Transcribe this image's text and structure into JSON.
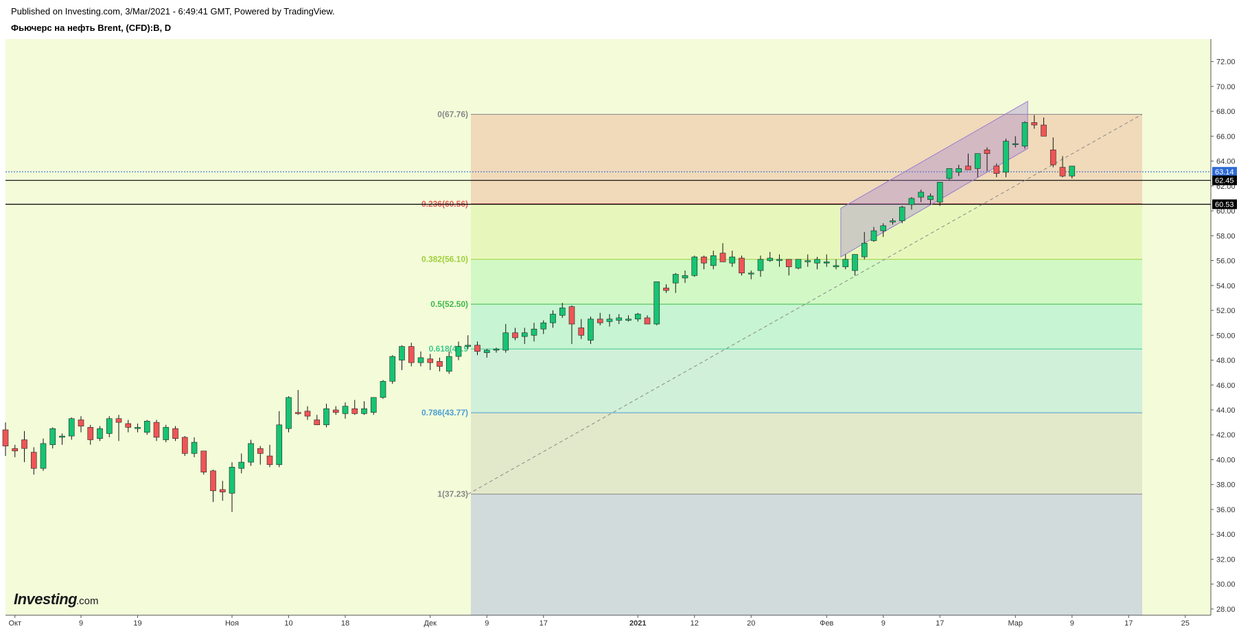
{
  "header": {
    "published": "Published on Investing.com, 3/Mar/2021 - 6:49:41 GMT, Powered by TradingView.",
    "symbol": "Фьючерс на нефть Brent, (CFD):B, D"
  },
  "logo": {
    "brand": "Investing",
    "suffix": ".com"
  },
  "colors": {
    "background": "#f3fbd9",
    "up": "#16c473",
    "down": "#ef5556",
    "wick": "#111111"
  },
  "chart_data": {
    "type": "candlestick",
    "ylim": [
      27.5,
      73.8
    ],
    "y_ticks": [
      "28.00",
      "30.00",
      "32.00",
      "34.00",
      "36.00",
      "38.00",
      "40.00",
      "42.00",
      "44.00",
      "46.00",
      "48.00",
      "50.00",
      "52.00",
      "54.00",
      "56.00",
      "58.00",
      "60.00",
      "62.00",
      "64.00",
      "66.00",
      "68.00",
      "70.00",
      "72.00"
    ],
    "x_ticks": [
      {
        "label": "Окт",
        "bar": 1,
        "bold": false
      },
      {
        "label": "9",
        "bar": 8,
        "bold": false
      },
      {
        "label": "19",
        "bar": 14,
        "bold": false
      },
      {
        "label": "Ноя",
        "bar": 24,
        "bold": false
      },
      {
        "label": "10",
        "bar": 30,
        "bold": false
      },
      {
        "label": "18",
        "bar": 36,
        "bold": false
      },
      {
        "label": "Дек",
        "bar": 45,
        "bold": false
      },
      {
        "label": "9",
        "bar": 51,
        "bold": false
      },
      {
        "label": "17",
        "bar": 57,
        "bold": false
      },
      {
        "label": "2021",
        "bar": 67,
        "bold": true
      },
      {
        "label": "12",
        "bar": 73,
        "bold": false
      },
      {
        "label": "20",
        "bar": 79,
        "bold": false
      },
      {
        "label": "Фев",
        "bar": 87,
        "bold": false
      },
      {
        "label": "9",
        "bar": 93,
        "bold": false
      },
      {
        "label": "17",
        "bar": 99,
        "bold": false
      },
      {
        "label": "Мар",
        "bar": 107,
        "bold": false
      },
      {
        "label": "9",
        "bar": 113,
        "bold": false
      },
      {
        "label": "17",
        "bar": 119,
        "bold": false
      },
      {
        "label": "25",
        "bar": 125,
        "bold": false
      }
    ],
    "candles": [
      [
        42.4,
        43.0,
        40.3,
        41.1
      ],
      [
        40.9,
        41.2,
        40.2,
        40.7
      ],
      [
        41.6,
        42.3,
        39.8,
        40.9
      ],
      [
        40.6,
        41.0,
        38.8,
        39.3
      ],
      [
        39.3,
        41.7,
        39.1,
        41.3
      ],
      [
        41.2,
        42.6,
        40.9,
        42.5
      ],
      [
        41.8,
        42.1,
        41.2,
        41.9
      ],
      [
        41.9,
        43.4,
        41.6,
        43.3
      ],
      [
        43.2,
        43.5,
        42.2,
        42.7
      ],
      [
        42.6,
        42.8,
        41.2,
        41.6
      ],
      [
        41.7,
        42.7,
        41.5,
        42.5
      ],
      [
        42.1,
        43.5,
        41.8,
        43.3
      ],
      [
        43.3,
        43.6,
        41.5,
        43.0
      ],
      [
        42.9,
        43.2,
        42.2,
        42.6
      ],
      [
        42.5,
        42.9,
        42.2,
        42.6
      ],
      [
        42.2,
        43.2,
        42.0,
        43.1
      ],
      [
        43.0,
        43.2,
        41.5,
        41.8
      ],
      [
        41.6,
        42.8,
        41.4,
        42.6
      ],
      [
        42.5,
        42.7,
        41.5,
        41.7
      ],
      [
        41.8,
        41.9,
        40.3,
        40.5
      ],
      [
        40.5,
        41.8,
        40.2,
        41.4
      ],
      [
        40.7,
        40.7,
        38.8,
        39.0
      ],
      [
        39.1,
        39.2,
        36.6,
        37.5
      ],
      [
        37.6,
        38.3,
        36.7,
        37.4
      ],
      [
        37.3,
        39.8,
        35.8,
        39.4
      ],
      [
        39.3,
        40.5,
        38.9,
        39.8
      ],
      [
        39.8,
        41.6,
        39.5,
        41.3
      ],
      [
        40.9,
        41.1,
        39.6,
        40.5
      ],
      [
        40.3,
        41.2,
        39.4,
        39.6
      ],
      [
        39.6,
        43.9,
        39.4,
        42.8
      ],
      [
        42.5,
        45.1,
        42.2,
        45.0
      ],
      [
        43.8,
        45.6,
        43.6,
        43.7
      ],
      [
        43.9,
        44.3,
        43.2,
        43.5
      ],
      [
        43.2,
        43.6,
        42.8,
        42.8
      ],
      [
        42.8,
        44.5,
        42.6,
        44.1
      ],
      [
        44.0,
        44.3,
        43.6,
        43.8
      ],
      [
        43.7,
        44.6,
        43.3,
        44.3
      ],
      [
        44.1,
        44.8,
        43.6,
        43.7
      ],
      [
        43.7,
        44.7,
        43.6,
        44.1
      ],
      [
        43.8,
        45.0,
        43.6,
        45.0
      ],
      [
        45.0,
        46.4,
        44.9,
        46.3
      ],
      [
        46.3,
        48.4,
        46.1,
        48.3
      ],
      [
        48.0,
        49.2,
        47.2,
        49.1
      ],
      [
        49.1,
        49.4,
        47.5,
        47.8
      ],
      [
        47.8,
        48.7,
        47.5,
        48.2
      ],
      [
        48.1,
        48.5,
        47.2,
        47.8
      ],
      [
        47.9,
        48.2,
        47.1,
        47.5
      ],
      [
        47.1,
        48.7,
        46.9,
        48.3
      ],
      [
        48.3,
        49.5,
        48.0,
        49.1
      ],
      [
        49.1,
        50.0,
        48.9,
        49.2
      ],
      [
        49.2,
        49.5,
        48.4,
        48.7
      ],
      [
        48.6,
        48.9,
        48.2,
        48.8
      ],
      [
        48.8,
        49.0,
        48.6,
        48.9
      ],
      [
        48.8,
        50.9,
        48.6,
        50.2
      ],
      [
        50.2,
        50.6,
        49.6,
        49.8
      ],
      [
        49.9,
        50.6,
        49.3,
        50.2
      ],
      [
        50.0,
        51.0,
        49.5,
        50.5
      ],
      [
        50.5,
        51.2,
        50.1,
        51.0
      ],
      [
        51.0,
        52.0,
        50.6,
        51.7
      ],
      [
        51.6,
        52.6,
        51.4,
        52.2
      ],
      [
        52.3,
        52.4,
        49.3,
        50.9
      ],
      [
        50.6,
        51.3,
        49.7,
        50.0
      ],
      [
        49.6,
        51.5,
        49.3,
        51.3
      ],
      [
        51.3,
        51.8,
        50.8,
        51.0
      ],
      [
        51.1,
        51.7,
        50.7,
        51.3
      ],
      [
        51.2,
        51.7,
        50.9,
        51.4
      ],
      [
        51.2,
        51.6,
        51.1,
        51.3
      ],
      [
        51.3,
        51.8,
        51.1,
        51.7
      ],
      [
        51.4,
        51.6,
        50.9,
        50.9
      ],
      [
        50.9,
        54.0,
        50.8,
        54.3
      ],
      [
        53.8,
        54.1,
        53.4,
        53.6
      ],
      [
        54.2,
        55.0,
        53.4,
        54.9
      ],
      [
        54.6,
        55.2,
        54.2,
        54.8
      ],
      [
        54.8,
        56.4,
        54.7,
        56.3
      ],
      [
        56.3,
        56.4,
        55.3,
        55.8
      ],
      [
        55.6,
        56.8,
        55.3,
        56.4
      ],
      [
        56.6,
        57.4,
        55.9,
        55.9
      ],
      [
        55.8,
        56.8,
        55.5,
        56.3
      ],
      [
        56.2,
        56.4,
        54.8,
        55.0
      ],
      [
        55.0,
        55.2,
        54.5,
        55.0
      ],
      [
        55.2,
        56.4,
        54.7,
        56.1
      ],
      [
        56.0,
        56.7,
        55.9,
        56.2
      ],
      [
        56.0,
        56.5,
        55.5,
        56.1
      ],
      [
        56.1,
        56.1,
        54.8,
        55.5
      ],
      [
        55.4,
        56.1,
        55.3,
        56.1
      ],
      [
        55.9,
        56.5,
        55.5,
        56.0
      ],
      [
        55.8,
        56.3,
        55.3,
        56.1
      ],
      [
        55.8,
        56.5,
        55.5,
        55.9
      ],
      [
        55.5,
        56.1,
        55.3,
        55.6
      ],
      [
        55.5,
        56.5,
        55.3,
        56.1
      ],
      [
        55.2,
        56.5,
        54.8,
        56.5
      ],
      [
        56.3,
        58.3,
        56.1,
        57.4
      ],
      [
        57.6,
        58.7,
        57.5,
        58.4
      ],
      [
        58.4,
        59.0,
        57.9,
        58.8
      ],
      [
        59.1,
        59.4,
        58.9,
        59.2
      ],
      [
        59.2,
        60.4,
        59.0,
        60.3
      ],
      [
        60.5,
        61.1,
        60.1,
        61.0
      ],
      [
        61.1,
        61.7,
        60.7,
        61.5
      ],
      [
        60.9,
        61.4,
        60.5,
        61.2
      ],
      [
        60.7,
        62.3,
        60.4,
        62.3
      ],
      [
        62.6,
        63.1,
        62.5,
        63.4
      ],
      [
        63.1,
        63.7,
        62.8,
        63.4
      ],
      [
        63.6,
        64.6,
        63.5,
        63.3
      ],
      [
        63.4,
        64.3,
        62.7,
        64.6
      ],
      [
        64.9,
        65.1,
        63.2,
        64.6
      ],
      [
        63.6,
        63.8,
        62.7,
        63.0
      ],
      [
        63.1,
        65.8,
        62.7,
        65.6
      ],
      [
        65.4,
        66.0,
        65.1,
        65.4
      ],
      [
        65.2,
        67.2,
        65.0,
        67.1
      ],
      [
        67.1,
        67.7,
        66.6,
        66.9
      ],
      [
        66.9,
        67.5,
        66.3,
        66.0
      ],
      [
        64.9,
        65.9,
        63.5,
        63.7
      ],
      [
        63.5,
        64.4,
        62.7,
        62.8
      ],
      [
        62.8,
        63.6,
        62.6,
        63.6
      ]
    ],
    "fib_levels": [
      {
        "ratio": "0",
        "price": 67.76,
        "label": "0(67.76)",
        "color": "#888888"
      },
      {
        "ratio": "0.236",
        "price": 60.56,
        "label": "0.236(60.56)",
        "color": "#e55a5a"
      },
      {
        "ratio": "0.382",
        "price": 56.1,
        "label": "0.382(56.10)",
        "color": "#9fcf3a"
      },
      {
        "ratio": "0.5",
        "price": 52.5,
        "label": "0.5(52.50)",
        "color": "#3db84a"
      },
      {
        "ratio": "0.618",
        "price": 48.9,
        "label": "0.618(48.9",
        "color": "#3ec98e"
      },
      {
        "ratio": "0.786",
        "price": 43.77,
        "label": "0.786(43.77)",
        "color": "#4b9fd5"
      },
      {
        "ratio": "1",
        "price": 37.23,
        "label": "1(37.23)",
        "color": "#888888"
      }
    ],
    "fib_zone_colors": [
      "#f0d6b6",
      "#e6f6b8",
      "#cef8c2",
      "#c2f3d0",
      "#cdeed8",
      "#e0e6c8",
      "#cdd7dc"
    ],
    "price_labels": [
      {
        "value": "63.14",
        "bg": "#2f6bd6",
        "fg": "#ffffff"
      },
      {
        "value": "62.45",
        "bg": "#000000",
        "fg": "#ffffff"
      },
      {
        "value": "60.53",
        "bg": "#000000",
        "fg": "#ffffff"
      }
    ]
  }
}
